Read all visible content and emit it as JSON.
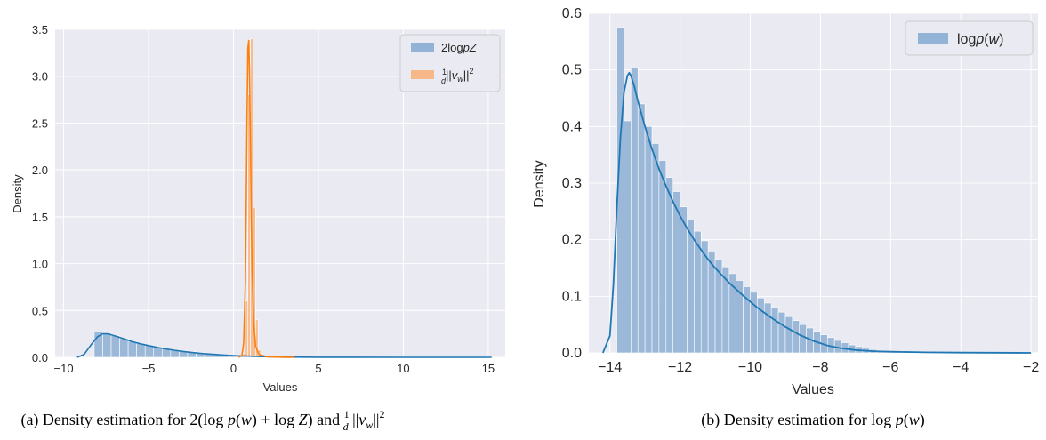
{
  "colors": {
    "plot_bg": "#eaeaf2",
    "grid": "#ffffff",
    "blue": "#1f77b4",
    "blue_bar": "#92b3d5",
    "orange": "#ff7f0e",
    "orange_bar": "#f6b888"
  },
  "captions": [
    "(a) Density estimation for 2(log p(w) + log Z) and ¹⁄d ||v_w||²",
    "(b) Density estimation for log p(w)"
  ],
  "chart_data": [
    {
      "type": "histogram",
      "xlabel": "Values",
      "ylabel": "Density",
      "xlim": [
        -10.5,
        16
      ],
      "ylim": [
        0,
        3.5
      ],
      "xticks": [
        -10,
        -5,
        0,
        5,
        10,
        15
      ],
      "xtick_labels": [
        "−10",
        "−5",
        "0",
        "5",
        "10",
        "15"
      ],
      "yticks": [
        0.0,
        0.5,
        1.0,
        1.5,
        2.0,
        2.5,
        3.0,
        3.5
      ],
      "ytick_labels": [
        "0.0",
        "0.5",
        "1.0",
        "1.5",
        "2.0",
        "2.5",
        "3.0",
        "3.5"
      ],
      "legend_position": "top-right",
      "series": [
        {
          "name": "2logpZ",
          "kind": "hist+kde",
          "bins_start": -8.2,
          "bin_width": 0.5,
          "bar_values": [
            0.28,
            0.26,
            0.23,
            0.2,
            0.17,
            0.15,
            0.13,
            0.11,
            0.095,
            0.082,
            0.07,
            0.06,
            0.05,
            0.043,
            0.036,
            0.03,
            0.025,
            0.021,
            0.017,
            0.014,
            0.011,
            0.009,
            0.007,
            0.006
          ],
          "kde_x": [
            -9.2,
            -8.8,
            -8.4,
            -8.0,
            -7.7,
            -7.4,
            -7.0,
            -6.5,
            -6.0,
            -5.5,
            -5.0,
            -4.5,
            -4.0,
            -3.5,
            -3.0,
            -2.5,
            -2.0,
            -1.5,
            -1.0,
            -0.5,
            0.0,
            0.5,
            1.0,
            1.5,
            2.0,
            3.0,
            4.0,
            5.0,
            7.0,
            10.0,
            12.5,
            15.2
          ],
          "kde_y": [
            0.0,
            0.03,
            0.13,
            0.22,
            0.25,
            0.25,
            0.23,
            0.2,
            0.17,
            0.145,
            0.125,
            0.106,
            0.09,
            0.076,
            0.064,
            0.053,
            0.044,
            0.036,
            0.03,
            0.024,
            0.019,
            0.015,
            0.012,
            0.009,
            0.007,
            0.004,
            0.002,
            0.001,
            0.0005,
            0.0002,
            0.0001,
            0.0
          ]
        },
        {
          "name": "1/d ||v_w||^2",
          "kind": "hist+kde",
          "bins_start": 0.55,
          "bin_width": 0.15,
          "bar_values": [
            0.04,
            0.6,
            2.8,
            3.4,
            1.6,
            0.4,
            0.08,
            0.02
          ],
          "kde_x": [
            0.3,
            0.5,
            0.6,
            0.7,
            0.75,
            0.8,
            0.85,
            0.9,
            0.95,
            1.0,
            1.05,
            1.1,
            1.2,
            1.3,
            1.5,
            2.0,
            3.0,
            3.6
          ],
          "kde_y": [
            0.0,
            0.02,
            0.15,
            0.8,
            1.6,
            2.6,
            3.3,
            3.38,
            3.0,
            2.3,
            1.5,
            0.9,
            0.35,
            0.12,
            0.03,
            0.005,
            0.001,
            0.0
          ]
        }
      ]
    },
    {
      "type": "histogram",
      "xlabel": "Values",
      "ylabel": "Density",
      "xlim": [
        -14.6,
        -1.8
      ],
      "ylim": [
        0,
        0.6
      ],
      "xticks": [
        -14,
        -12,
        -10,
        -8,
        -6,
        -4,
        -2
      ],
      "xtick_labels": [
        "−14",
        "−12",
        "−10",
        "−8",
        "−6",
        "−4",
        "−2"
      ],
      "yticks": [
        0.0,
        0.1,
        0.2,
        0.3,
        0.4,
        0.5,
        0.6
      ],
      "ytick_labels": [
        "0.0",
        "0.1",
        "0.2",
        "0.3",
        "0.4",
        "0.5",
        "0.6"
      ],
      "legend_position": "top-right",
      "series": [
        {
          "name": "logp(w)",
          "kind": "hist+kde",
          "bins_start": -13.8,
          "bin_width": 0.2,
          "bar_values": [
            0.575,
            0.41,
            0.505,
            0.44,
            0.4,
            0.37,
            0.34,
            0.31,
            0.285,
            0.258,
            0.235,
            0.215,
            0.198,
            0.18,
            0.165,
            0.152,
            0.14,
            0.128,
            0.117,
            0.107,
            0.097,
            0.088,
            0.08,
            0.072,
            0.064,
            0.057,
            0.05,
            0.044,
            0.038,
            0.032,
            0.027,
            0.022,
            0.018,
            0.014,
            0.011,
            0.008,
            0.006,
            0.004,
            0.003,
            0.002,
            0.002,
            0.001,
            0.001,
            0.001,
            0.001,
            0.0005,
            0.0005,
            0.0005,
            0.0005,
            0.0005,
            0.0005,
            0.0005,
            0.0005,
            0.0005,
            0.0005,
            0.0005,
            0.0005,
            0.0005,
            0.0005,
            0.0005
          ],
          "kde_x": [
            -14.2,
            -14.0,
            -13.9,
            -13.8,
            -13.7,
            -13.6,
            -13.5,
            -13.45,
            -13.4,
            -13.3,
            -13.2,
            -13.0,
            -12.8,
            -12.6,
            -12.4,
            -12.2,
            -12.0,
            -11.8,
            -11.6,
            -11.4,
            -11.2,
            -11.0,
            -10.6,
            -10.2,
            -9.8,
            -9.4,
            -9.0,
            -8.6,
            -8.2,
            -7.8,
            -7.4,
            -7.0,
            -6.5,
            -6.0,
            -5.0,
            -4.0,
            -2.0
          ],
          "kde_y": [
            0.0,
            0.03,
            0.12,
            0.26,
            0.38,
            0.46,
            0.49,
            0.495,
            0.49,
            0.47,
            0.445,
            0.4,
            0.36,
            0.325,
            0.295,
            0.267,
            0.242,
            0.22,
            0.2,
            0.182,
            0.165,
            0.15,
            0.124,
            0.101,
            0.08,
            0.062,
            0.046,
            0.032,
            0.021,
            0.013,
            0.008,
            0.005,
            0.003,
            0.002,
            0.001,
            0.0005,
            0.0
          ]
        }
      ]
    }
  ]
}
